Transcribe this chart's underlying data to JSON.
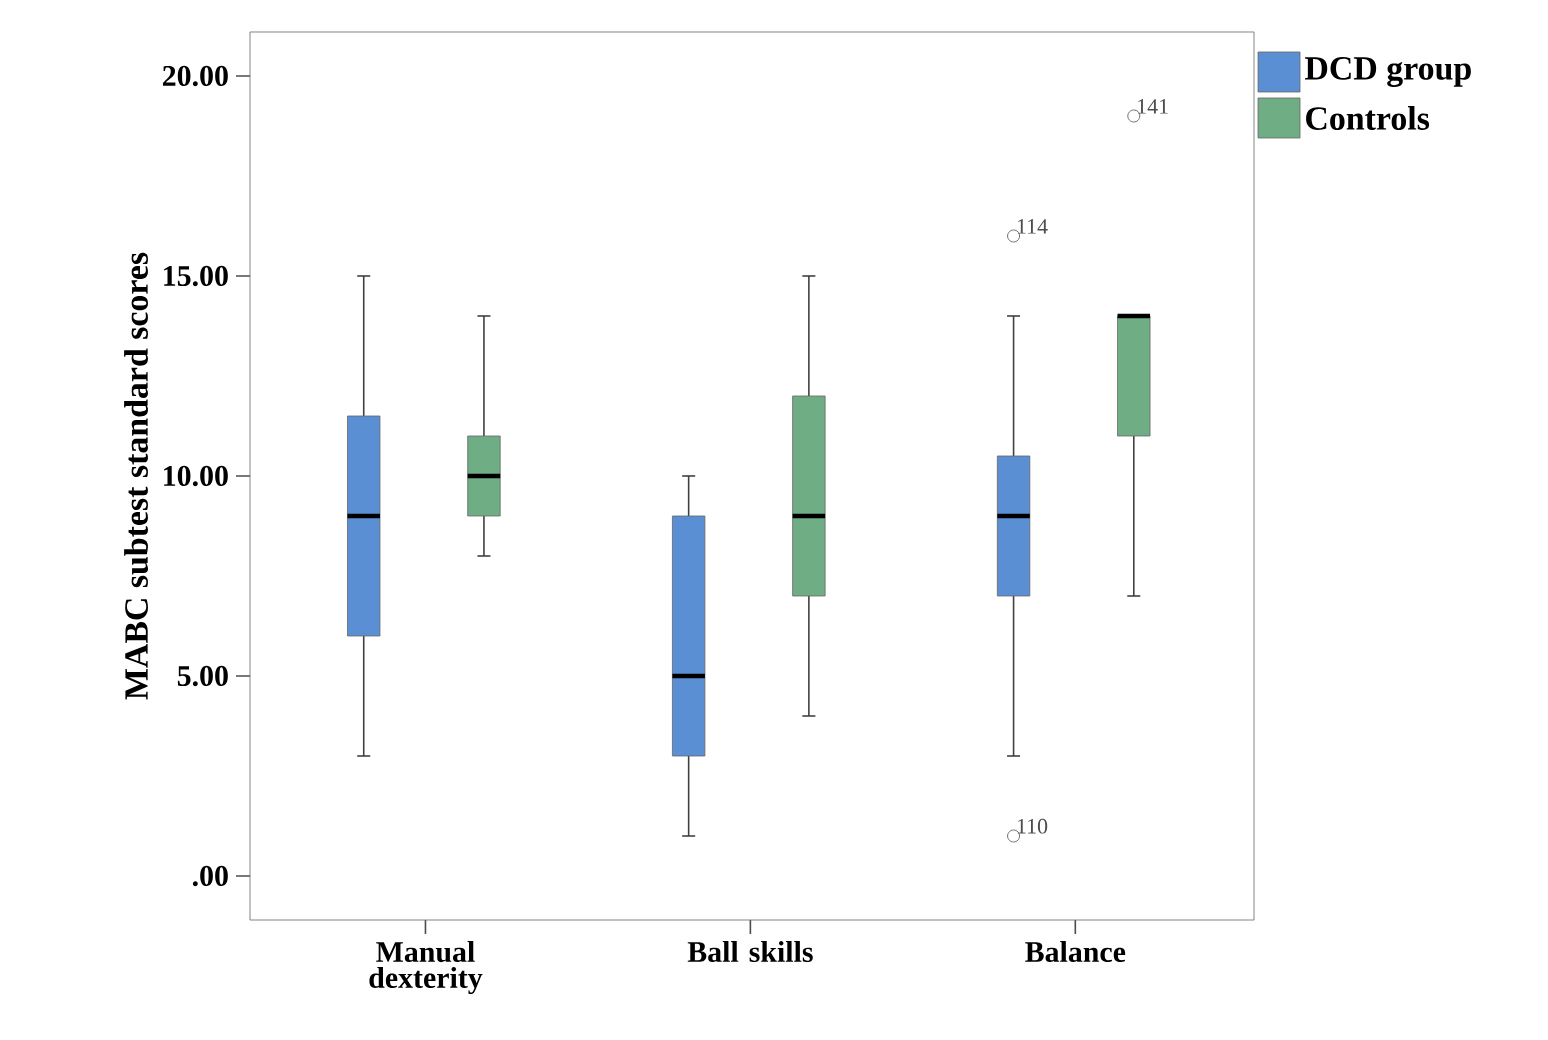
{
  "chart_data": {
    "type": "box",
    "ylabel": "MABC subtest standard scores",
    "categories": [
      "Manual dexterity",
      "Ball skills",
      "Balance"
    ],
    "series": [
      {
        "name": "DCD group",
        "color": "#5b8fd3",
        "boxes": [
          {
            "low": 3,
            "q1": 6,
            "median": 9,
            "q3": 11.5,
            "high": 15
          },
          {
            "low": 1,
            "q1": 3,
            "median": 5,
            "q3": 9,
            "high": 10
          },
          {
            "low": 3,
            "q1": 7,
            "median": 9,
            "q3": 10.5,
            "high": 14,
            "outliers": [
              16,
              1
            ]
          }
        ]
      },
      {
        "name": "Controls",
        "color": "#6fae84",
        "boxes": [
          {
            "low": 8,
            "q1": 9,
            "median": 10,
            "q3": 11,
            "high": 14
          },
          {
            "low": 4,
            "q1": 7,
            "median": 9,
            "q3": 12,
            "high": 15
          },
          {
            "low": 7,
            "q1": 11,
            "median": 14,
            "q3": 14,
            "high": 14,
            "outliers": [
              19
            ]
          }
        ]
      }
    ],
    "ylim": [
      -1.1,
      21.1
    ],
    "yticks": [
      {
        "value": 0,
        "label": ".00"
      },
      {
        "value": 5,
        "label": "5.00"
      },
      {
        "value": 10,
        "label": "10.00"
      },
      {
        "value": 15,
        "label": "15.00"
      },
      {
        "value": 20,
        "label": "20.00"
      }
    ],
    "annotations": [
      "114",
      "110",
      "141"
    ],
    "grid": false,
    "legend": "top right"
  }
}
